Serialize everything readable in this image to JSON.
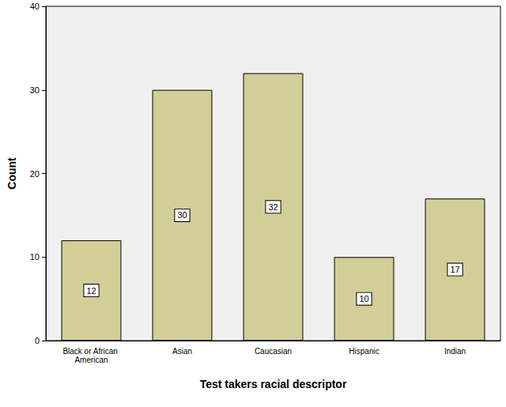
{
  "chart_data": {
    "type": "bar",
    "x_label": "Test takers racial descriptor",
    "y_label": "Count",
    "categories": [
      "Black or African American",
      "Asian",
      "Caucasian",
      "Hispanic",
      "Indian"
    ],
    "values": [
      12,
      30,
      32,
      10,
      17
    ],
    "color": "#d3ce97",
    "ylim": [
      0,
      40
    ],
    "yticks": [
      0,
      10,
      20,
      30,
      40
    ],
    "grid": false,
    "data_labels": true
  }
}
